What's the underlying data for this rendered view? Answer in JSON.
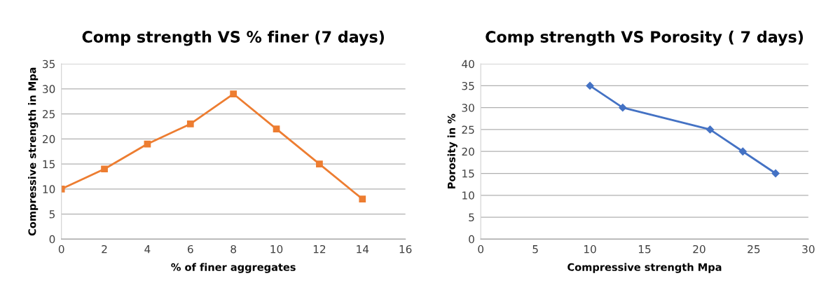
{
  "chart_data": [
    {
      "type": "line",
      "title": "Comp strength VS % finer (7 days)",
      "xlabel": "% of finer aggregates",
      "ylabel": "Compressive strength in Mpa",
      "x": [
        0,
        2,
        4,
        6,
        8,
        10,
        12,
        14
      ],
      "series": [
        {
          "color": "#ed7d31",
          "values": [
            10,
            14,
            19,
            23,
            29,
            22,
            15,
            8
          ]
        }
      ],
      "xlim": [
        0,
        16
      ],
      "xticks": [
        0,
        2,
        4,
        6,
        8,
        10,
        12,
        14,
        16
      ],
      "ylim": [
        0,
        35
      ],
      "yticks": [
        0,
        5,
        10,
        15,
        20,
        25,
        30,
        35
      ],
      "grid": "y",
      "marker": "square",
      "line_style": "solid"
    },
    {
      "type": "line",
      "title": "Comp strength VS Porosity ( 7 days)",
      "xlabel": "Compressive strength Mpa",
      "ylabel": "Porosity in %",
      "x": [
        10,
        13,
        21,
        24,
        27
      ],
      "series": [
        {
          "color": "#4472c4",
          "values": [
            35,
            30,
            25,
            20,
            15
          ]
        }
      ],
      "xlim": [
        0,
        30
      ],
      "xticks": [
        0,
        5,
        10,
        15,
        20,
        25,
        30
      ],
      "ylim": [
        0,
        40
      ],
      "yticks": [
        0,
        5,
        10,
        15,
        20,
        25,
        30,
        35,
        40
      ],
      "grid": "y",
      "marker": "diamond",
      "line_style": "solid"
    }
  ]
}
